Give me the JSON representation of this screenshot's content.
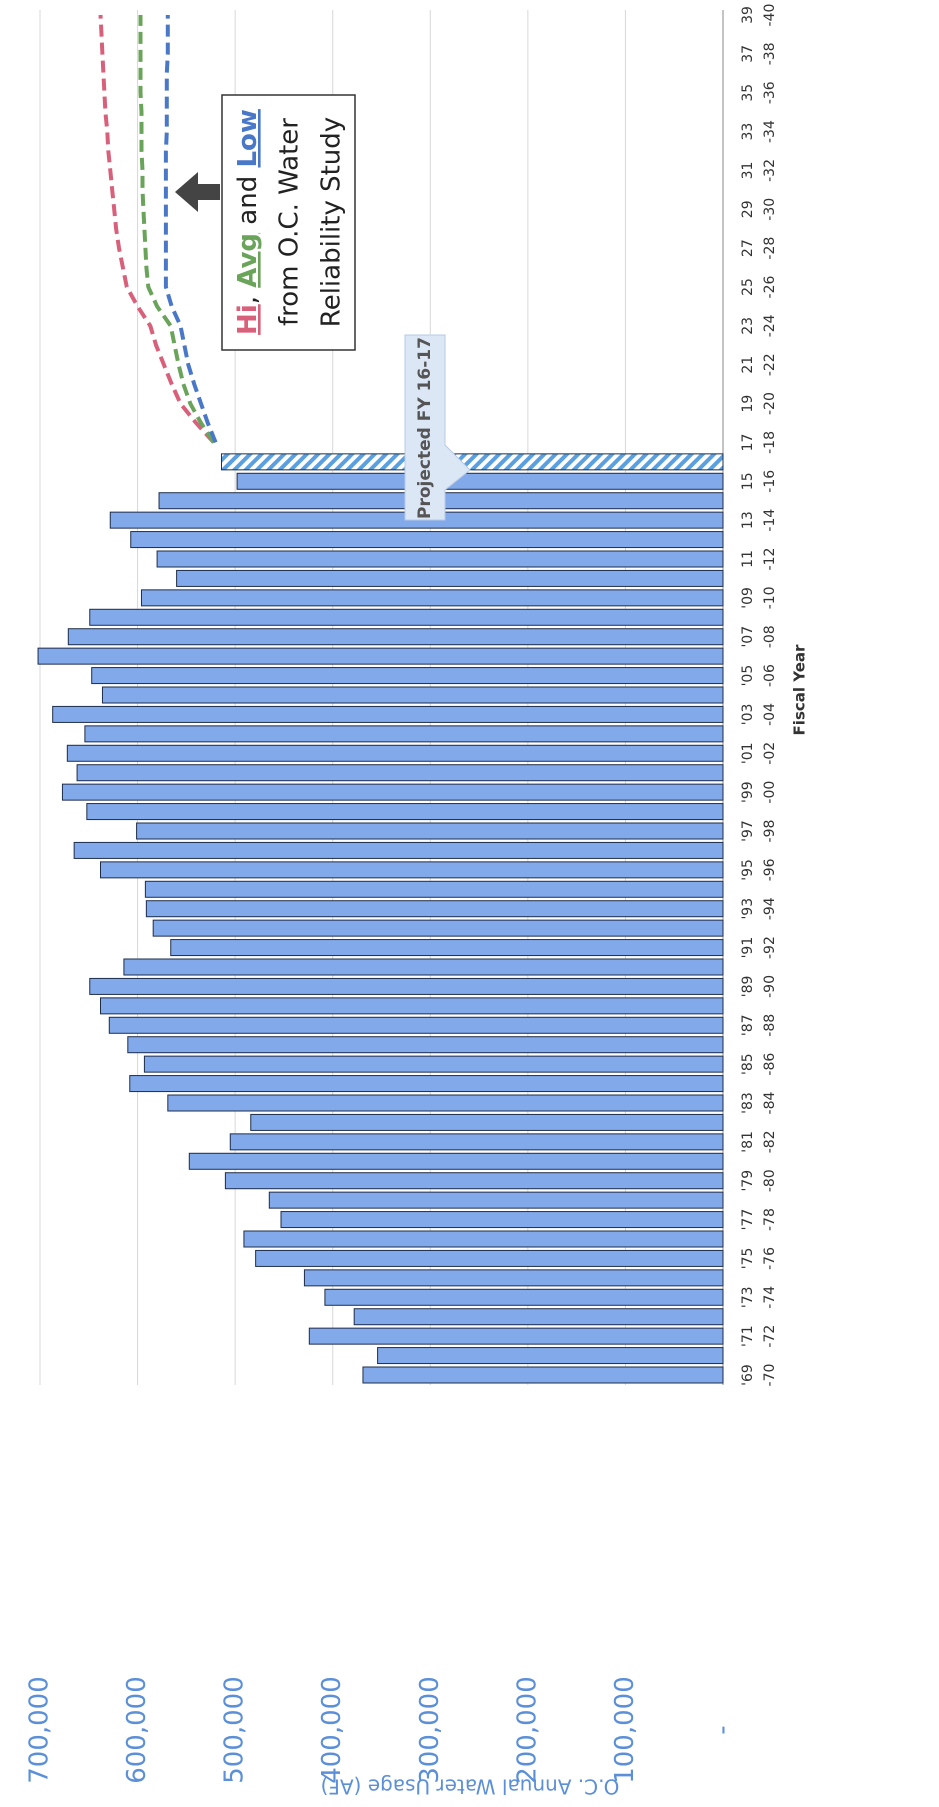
{
  "chart_data": {
    "type": "bar",
    "xlabel": "Fiscal Year",
    "ylabel": "O.C. Annual Water Usage (AF)",
    "annotation": "Projected FY 16-17",
    "note": {
      "sep1": ", ",
      "sep2": " and ",
      "line2": "from O.C. Water",
      "line3": "Reliability Study"
    },
    "categories": [
      [
        "'69",
        "-70"
      ],
      null,
      [
        "'71",
        "-72"
      ],
      null,
      [
        "'73",
        "-74"
      ],
      null,
      [
        "'75",
        "-76"
      ],
      null,
      [
        "'77",
        "-78"
      ],
      null,
      [
        "'79",
        "-80"
      ],
      null,
      [
        "'81",
        "-82"
      ],
      null,
      [
        "'83",
        "-84"
      ],
      null,
      [
        "'85",
        "-86"
      ],
      null,
      [
        "'87",
        "-88"
      ],
      null,
      [
        "'89",
        "-90"
      ],
      null,
      [
        "'91",
        "-92"
      ],
      null,
      [
        "'93",
        "-94"
      ],
      null,
      [
        "'95",
        "-96"
      ],
      null,
      [
        "'97",
        "-98"
      ],
      null,
      [
        "'99",
        "-00"
      ],
      null,
      [
        "'01",
        "-02"
      ],
      null,
      [
        "'03",
        "-04"
      ],
      null,
      [
        "'05",
        "-06"
      ],
      null,
      [
        "'07",
        "-08"
      ],
      null,
      [
        "'09",
        "-10"
      ],
      null,
      [
        "11",
        "-12"
      ],
      null,
      [
        "13",
        "-14"
      ],
      null,
      [
        "15",
        "-16"
      ],
      null,
      [
        "17",
        "-18"
      ],
      null,
      [
        "19",
        "-20"
      ],
      null,
      [
        "21",
        "-22"
      ],
      null,
      [
        "23",
        "-24"
      ],
      null,
      [
        "25",
        "-26"
      ],
      null,
      [
        "27",
        "-28"
      ],
      null,
      [
        "29",
        "-30"
      ],
      null,
      [
        "31",
        "-32"
      ],
      null,
      [
        "33",
        "-34"
      ],
      null,
      [
        "35",
        "-36"
      ],
      null,
      [
        "37",
        "-38"
      ],
      null,
      [
        "39",
        "-40"
      ]
    ],
    "values": [
      369000,
      354000,
      424000,
      378000,
      408000,
      429000,
      479000,
      491000,
      453000,
      465000,
      510000,
      547000,
      505000,
      484000,
      569000,
      608000,
      593000,
      610000,
      629000,
      638000,
      649000,
      614000,
      566000,
      584000,
      591000,
      592000,
      638000,
      665000,
      601000,
      652000,
      677000,
      662000,
      672000,
      654000,
      687000,
      636000,
      647000,
      702000,
      671000,
      649000,
      596000,
      560000,
      580000,
      607000,
      628000,
      578000,
      498000,
      null,
      null,
      null,
      null,
      null,
      null,
      null,
      null,
      null,
      null,
      null,
      null,
      null,
      null,
      null,
      null,
      null,
      null,
      null,
      null,
      null,
      null,
      null,
      null
    ],
    "projected_values": [
      null,
      null,
      null,
      null,
      null,
      null,
      null,
      null,
      null,
      null,
      null,
      null,
      null,
      null,
      null,
      null,
      null,
      null,
      null,
      null,
      null,
      null,
      null,
      null,
      null,
      null,
      null,
      null,
      null,
      null,
      null,
      null,
      null,
      null,
      null,
      null,
      null,
      null,
      null,
      null,
      null,
      null,
      null,
      null,
      null,
      null,
      null,
      514000,
      null,
      null,
      null,
      null,
      null,
      null,
      null,
      null,
      null,
      null,
      null,
      null,
      null,
      null,
      null,
      null,
      null,
      null,
      null,
      null,
      null,
      null,
      null
    ],
    "color": "#82a9ea",
    "projected_color": "#5aa0e0",
    "series": [
      {
        "name": "Hi",
        "color": "#d9607a",
        "values": [
          null,
          null,
          null,
          null,
          null,
          null,
          null,
          null,
          null,
          null,
          null,
          null,
          null,
          null,
          null,
          null,
          null,
          null,
          null,
          null,
          null,
          null,
          null,
          null,
          null,
          null,
          null,
          null,
          null,
          null,
          null,
          null,
          null,
          null,
          null,
          null,
          null,
          null,
          null,
          null,
          null,
          null,
          null,
          null,
          null,
          null,
          null,
          null,
          522000,
          540000,
          556000,
          565000,
          573000,
          581000,
          587000,
          600000,
          611000,
          615000,
          619000,
          622000,
          624000,
          626000,
          628000,
          630000,
          631000,
          633000,
          634000,
          635000,
          636000,
          637000,
          638000
        ]
      },
      {
        "name": "Avg",
        "color": "#6aa35a",
        "values": [
          null,
          null,
          null,
          null,
          null,
          null,
          null,
          null,
          null,
          null,
          null,
          null,
          null,
          null,
          null,
          null,
          null,
          null,
          null,
          null,
          null,
          null,
          null,
          null,
          null,
          null,
          null,
          null,
          null,
          null,
          null,
          null,
          null,
          null,
          null,
          null,
          null,
          null,
          null,
          null,
          null,
          null,
          null,
          null,
          null,
          null,
          null,
          null,
          522000,
          535000,
          546000,
          553000,
          558000,
          562000,
          566000,
          580000,
          589000,
          591000,
          592000,
          593000,
          594000,
          595000,
          595000,
          596000,
          596000,
          596000,
          597000,
          597000,
          597000,
          597000,
          597000
        ]
      },
      {
        "name": "Low",
        "color": "#4a78c8",
        "values": [
          null,
          null,
          null,
          null,
          null,
          null,
          null,
          null,
          null,
          null,
          null,
          null,
          null,
          null,
          null,
          null,
          null,
          null,
          null,
          null,
          null,
          null,
          null,
          null,
          null,
          null,
          null,
          null,
          null,
          null,
          null,
          null,
          null,
          null,
          null,
          null,
          null,
          null,
          null,
          null,
          null,
          null,
          null,
          null,
          null,
          null,
          null,
          null,
          520000,
          528000,
          535000,
          542000,
          548000,
          552000,
          556000,
          565000,
          571000,
          571000,
          571000,
          571000,
          571000,
          571000,
          571000,
          571000,
          570000,
          570000,
          570000,
          570000,
          569000,
          569000,
          569000
        ]
      }
    ],
    "ylim": [
      0,
      700000
    ],
    "yticks": [
      {
        "value": 0,
        "label": "-"
      },
      {
        "value": 100000,
        "label": "100,000"
      },
      {
        "value": 200000,
        "label": "200,000"
      },
      {
        "value": 300000,
        "label": "300,000"
      },
      {
        "value": 400000,
        "label": "400,000"
      },
      {
        "value": 500000,
        "label": "500,000"
      },
      {
        "value": 600000,
        "label": "600,000"
      },
      {
        "value": 700000,
        "label": "700,000"
      }
    ],
    "grid": true
  }
}
